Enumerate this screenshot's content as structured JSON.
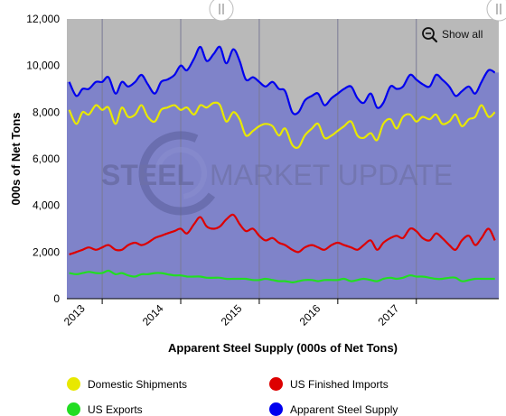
{
  "chart_data": {
    "type": "line",
    "title": "",
    "xlabel": "Apparent Steel Supply (000s of Net Tons)",
    "ylabel": "000s of Net Tons",
    "ylim": [
      0,
      12000
    ],
    "yticks": [
      0,
      2000,
      4000,
      6000,
      8000,
      10000,
      12000
    ],
    "ytick_labels": [
      "0",
      "2,000",
      "4,000",
      "6,000",
      "8,000",
      "10,000",
      "12,000"
    ],
    "xlim": [
      2012.55,
      2018.05
    ],
    "xticks": [
      2013,
      2014,
      2015,
      2016,
      2017
    ],
    "xtick_labels": [
      "2013",
      "2014",
      "2015",
      "2016",
      "2017"
    ],
    "grid": "vertical",
    "legend_position": "bottom",
    "x": [
      2012.58,
      2012.67,
      2012.75,
      2012.83,
      2012.92,
      2013.0,
      2013.08,
      2013.17,
      2013.25,
      2013.33,
      2013.42,
      2013.5,
      2013.58,
      2013.67,
      2013.75,
      2013.83,
      2013.92,
      2014.0,
      2014.08,
      2014.17,
      2014.25,
      2014.33,
      2014.42,
      2014.5,
      2014.58,
      2014.67,
      2014.75,
      2014.83,
      2014.92,
      2015.0,
      2015.08,
      2015.17,
      2015.25,
      2015.33,
      2015.42,
      2015.5,
      2015.58,
      2015.67,
      2015.75,
      2015.83,
      2015.92,
      2016.0,
      2016.08,
      2016.17,
      2016.25,
      2016.33,
      2016.42,
      2016.5,
      2016.58,
      2016.67,
      2016.75,
      2016.83,
      2016.92,
      2017.0,
      2017.08,
      2017.17,
      2017.25,
      2017.33,
      2017.42,
      2017.5,
      2017.58,
      2017.67,
      2017.75,
      2017.83,
      2017.92,
      2018.0
    ],
    "series": [
      {
        "name": "Domestic Shipments",
        "color": "#e8e800",
        "values": [
          8100,
          7500,
          8000,
          7900,
          8300,
          8100,
          8200,
          7500,
          8200,
          7800,
          7900,
          8300,
          7800,
          7600,
          8100,
          8200,
          8300,
          8100,
          8200,
          7900,
          8300,
          8200,
          8400,
          8300,
          7600,
          8000,
          7700,
          7000,
          7200,
          7400,
          7500,
          7400,
          7000,
          7300,
          6600,
          6500,
          7000,
          7300,
          7500,
          6900,
          7000,
          7200,
          7400,
          7600,
          7000,
          6900,
          7100,
          6800,
          7500,
          7700,
          7300,
          7800,
          7900,
          7600,
          7800,
          7700,
          7900,
          7500,
          7600,
          7900,
          7400,
          7700,
          7800,
          8300,
          7800,
          8000
        ]
      },
      {
        "name": "US Finished Imports",
        "color": "#dd0000",
        "values": [
          1900,
          2000,
          2100,
          2200,
          2100,
          2200,
          2300,
          2100,
          2100,
          2300,
          2400,
          2300,
          2400,
          2600,
          2700,
          2800,
          2900,
          3000,
          2800,
          3200,
          3500,
          3100,
          3000,
          3100,
          3400,
          3600,
          3200,
          2900,
          3000,
          2700,
          2500,
          2600,
          2400,
          2300,
          2100,
          2000,
          2200,
          2300,
          2200,
          2100,
          2300,
          2400,
          2300,
          2200,
          2100,
          2300,
          2500,
          2100,
          2400,
          2600,
          2700,
          2600,
          3000,
          2900,
          2600,
          2500,
          2800,
          2600,
          2300,
          2100,
          2500,
          2700,
          2300,
          2600,
          3000,
          2500
        ]
      },
      {
        "name": "US Exports",
        "color": "#22dd22",
        "values": [
          1100,
          1050,
          1100,
          1150,
          1100,
          1100,
          1200,
          1050,
          1100,
          1000,
          950,
          1050,
          1050,
          1100,
          1100,
          1050,
          1000,
          1000,
          950,
          950,
          950,
          900,
          900,
          900,
          850,
          850,
          850,
          850,
          800,
          800,
          850,
          800,
          750,
          750,
          700,
          750,
          800,
          800,
          750,
          800,
          800,
          800,
          850,
          750,
          800,
          850,
          800,
          750,
          850,
          900,
          850,
          900,
          1000,
          950,
          950,
          900,
          850,
          850,
          900,
          900,
          750,
          800,
          850,
          850,
          850,
          850
        ]
      },
      {
        "name": "Apparent Steel Supply",
        "color": "#0000ee",
        "values": [
          9300,
          8700,
          9000,
          9000,
          9300,
          9300,
          9500,
          8800,
          9300,
          9100,
          9300,
          9600,
          9200,
          8800,
          9300,
          9400,
          9600,
          10000,
          9800,
          10300,
          10800,
          10200,
          10500,
          10800,
          10100,
          10700,
          10200,
          9400,
          9500,
          9300,
          9100,
          9300,
          9000,
          8900,
          8000,
          8000,
          8500,
          8700,
          8800,
          8300,
          8600,
          8800,
          9000,
          9100,
          8600,
          8400,
          8800,
          8200,
          8400,
          9100,
          9000,
          9100,
          9600,
          9400,
          9200,
          9100,
          9600,
          9400,
          9100,
          8700,
          8900,
          9100,
          8800,
          9300,
          9800,
          9700
        ]
      }
    ]
  },
  "toolbar": {
    "show_all_label": "Show all",
    "zoom_icon": "zoom-out-icon"
  },
  "navigator": {
    "left_handle_icon": "grip-icon",
    "right_handle_icon": "grip-icon"
  },
  "watermark": {
    "text": "STEEL MARKET UPDATE",
    "bold_part": "STEEL",
    "light_part": "MARKET UPDATE"
  },
  "colors": {
    "area_fill": "#7f83c9",
    "background_band": "#b9b9b9",
    "grid": "#7a7a95",
    "text": "#000000"
  }
}
